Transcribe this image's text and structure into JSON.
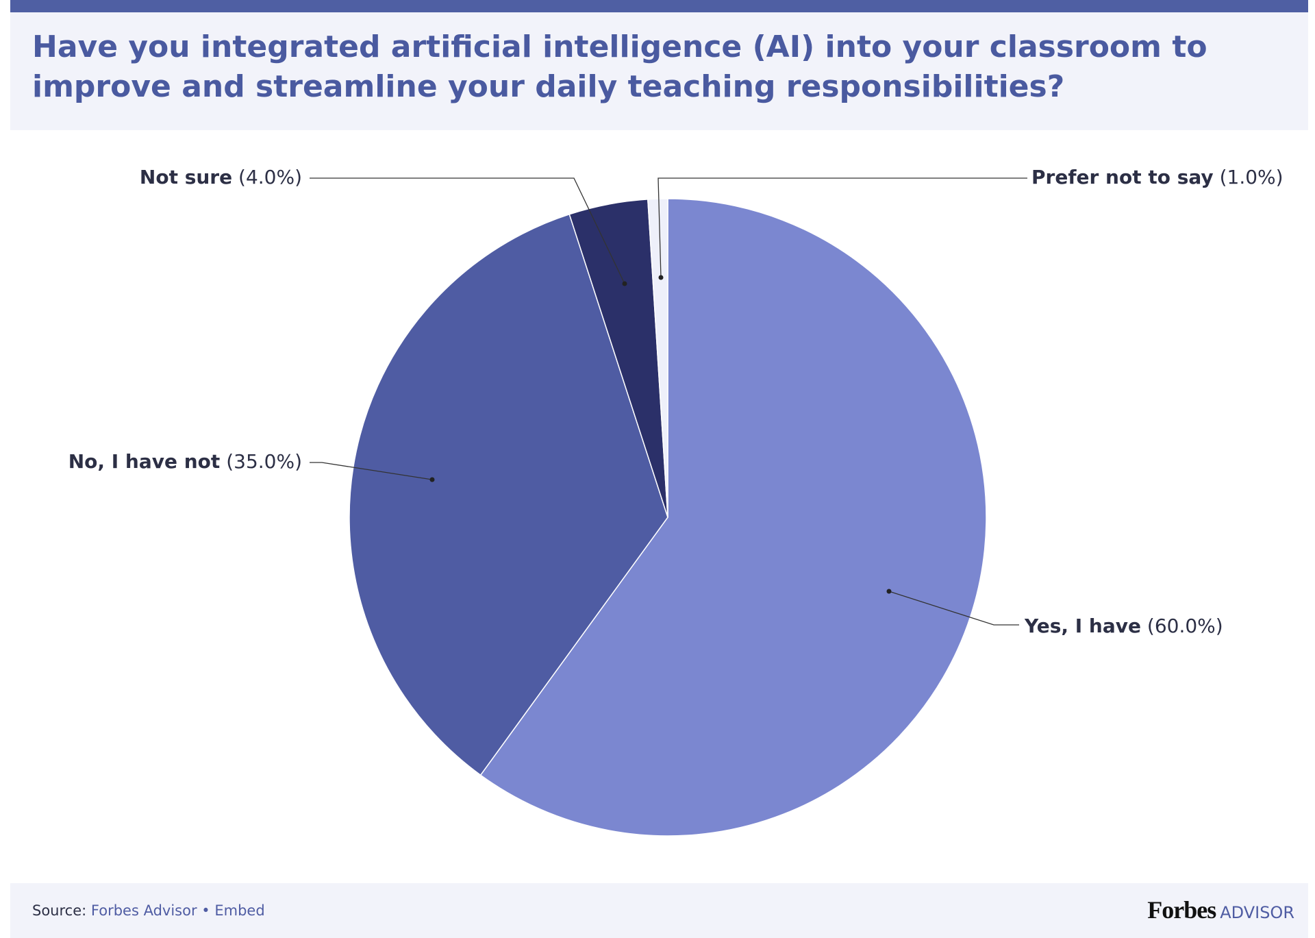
{
  "chart_data": {
    "type": "pie",
    "title": "Have you integrated artificial intelligence (AI) into your classroom to improve and streamline your daily teaching responsibilities?",
    "categories": [
      "Yes, I have",
      "No, I have not",
      "Not sure",
      "Prefer not to say"
    ],
    "values": [
      60.0,
      35.0,
      4.0,
      1.0
    ],
    "value_labels": [
      "(60.0%)",
      "(35.0%)",
      "(4.0%)",
      "(1.0%)"
    ],
    "colors": [
      "#7b87d0",
      "#4f5ca3",
      "#2b3069",
      "#eef0fa"
    ],
    "start_angle": 0,
    "direction": "clockwise"
  },
  "footer": {
    "source_label": "Source:",
    "source": "Forbes Advisor",
    "separator": "•",
    "embed": "Embed",
    "logo": "Forbes",
    "logo_sub": "ADVISOR"
  }
}
